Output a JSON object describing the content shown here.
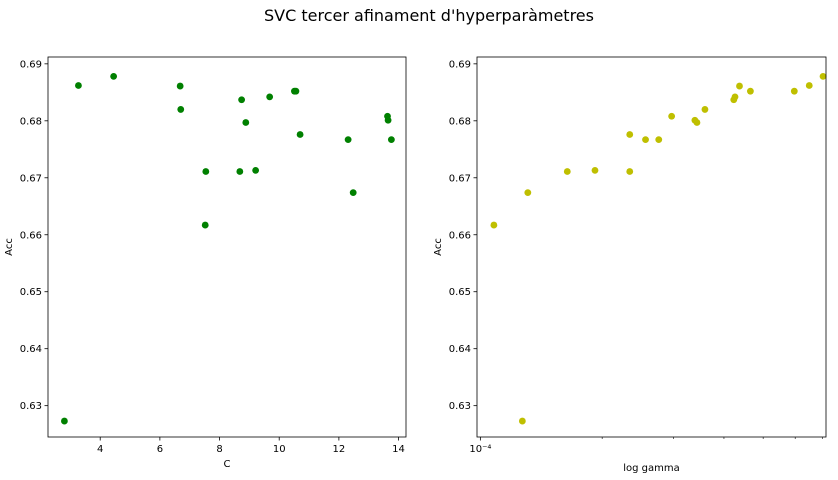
{
  "figure": {
    "title": "SVC tercer afinament d'hyperparàmetres"
  },
  "chart_data": [
    {
      "type": "scatter",
      "xlabel": "C",
      "ylabel": "Acc",
      "xscale": "linear",
      "xlim": [
        2.25,
        14.25
      ],
      "ylim": [
        0.6245,
        0.6912
      ],
      "xticks": [
        4,
        6,
        8,
        10,
        12,
        14
      ],
      "xtick_labels": [
        "4",
        "6",
        "8",
        "10",
        "12",
        "14"
      ],
      "yticks": [
        0.63,
        0.64,
        0.65,
        0.66,
        0.67,
        0.68,
        0.69
      ],
      "ytick_labels": [
        "0.63",
        "0.64",
        "0.65",
        "0.66",
        "0.67",
        "0.68",
        "0.69"
      ],
      "color": "#008000",
      "points": [
        {
          "x": 2.8,
          "y": 0.6273
        },
        {
          "x": 3.27,
          "y": 0.6862
        },
        {
          "x": 4.45,
          "y": 0.6878
        },
        {
          "x": 6.68,
          "y": 0.6861
        },
        {
          "x": 6.7,
          "y": 0.682
        },
        {
          "x": 7.54,
          "y": 0.6711
        },
        {
          "x": 7.52,
          "y": 0.6617
        },
        {
          "x": 8.68,
          "y": 0.6711
        },
        {
          "x": 8.74,
          "y": 0.6837
        },
        {
          "x": 8.88,
          "y": 0.6797
        },
        {
          "x": 9.21,
          "y": 0.6713
        },
        {
          "x": 9.68,
          "y": 0.6842
        },
        {
          "x": 10.51,
          "y": 0.6852
        },
        {
          "x": 10.56,
          "y": 0.6852
        },
        {
          "x": 10.7,
          "y": 0.6776
        },
        {
          "x": 12.31,
          "y": 0.6767
        },
        {
          "x": 12.48,
          "y": 0.6674
        },
        {
          "x": 13.63,
          "y": 0.6808
        },
        {
          "x": 13.65,
          "y": 0.6801
        },
        {
          "x": 13.76,
          "y": 0.6767
        }
      ]
    },
    {
      "type": "scatter",
      "xlabel": "log gamma",
      "ylabel": "Acc",
      "xscale": "log",
      "xlim": [
        9.81e-05,
        0.000715
      ],
      "ylim": [
        0.6245,
        0.6912
      ],
      "xticks": [
        0.0001
      ],
      "xtick_labels": [
        "10⁻⁴"
      ],
      "xminor_ticks": [
        0.0002,
        0.0003,
        0.0004,
        0.0005,
        0.0006,
        0.0007
      ],
      "yticks": [
        0.63,
        0.64,
        0.65,
        0.66,
        0.67,
        0.68,
        0.69
      ],
      "ytick_labels": [
        "0.63",
        "0.64",
        "0.65",
        "0.66",
        "0.67",
        "0.68",
        "0.69"
      ],
      "color": "#bfbf00",
      "points": [
        {
          "x": 0.000108,
          "y": 0.6617
        },
        {
          "x": 0.000127,
          "y": 0.6273
        },
        {
          "x": 0.000131,
          "y": 0.6674
        },
        {
          "x": 0.000164,
          "y": 0.6711
        },
        {
          "x": 0.000192,
          "y": 0.6713
        },
        {
          "x": 0.000234,
          "y": 0.6776
        },
        {
          "x": 0.000234,
          "y": 0.6711
        },
        {
          "x": 0.000256,
          "y": 0.6767
        },
        {
          "x": 0.000276,
          "y": 0.6767
        },
        {
          "x": 0.000297,
          "y": 0.6808
        },
        {
          "x": 0.000339,
          "y": 0.6801
        },
        {
          "x": 0.000343,
          "y": 0.6797
        },
        {
          "x": 0.000359,
          "y": 0.682
        },
        {
          "x": 0.000423,
          "y": 0.6837
        },
        {
          "x": 0.000426,
          "y": 0.6842
        },
        {
          "x": 0.000437,
          "y": 0.6861
        },
        {
          "x": 0.000465,
          "y": 0.6852
        },
        {
          "x": 0.000597,
          "y": 0.6852
        },
        {
          "x": 0.00065,
          "y": 0.6862
        },
        {
          "x": 0.000703,
          "y": 0.6878
        }
      ]
    }
  ]
}
